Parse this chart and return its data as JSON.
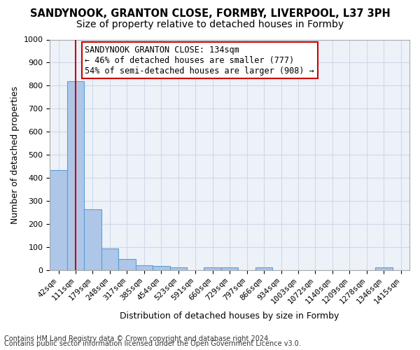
{
  "title1": "SANDYNOOK, GRANTON CLOSE, FORMBY, LIVERPOOL, L37 3PH",
  "title2": "Size of property relative to detached houses in Formby",
  "xlabel": "Distribution of detached houses by size in Formby",
  "ylabel": "Number of detached properties",
  "footer1": "Contains HM Land Registry data © Crown copyright and database right 2024.",
  "footer2": "Contains public sector information licensed under the Open Government Licence v3.0.",
  "bin_labels": [
    "42sqm",
    "111sqm",
    "179sqm",
    "248sqm",
    "317sqm",
    "385sqm",
    "454sqm",
    "523sqm",
    "591sqm",
    "660sqm",
    "729sqm",
    "797sqm",
    "866sqm",
    "934sqm",
    "1003sqm",
    "1072sqm",
    "1140sqm",
    "1209sqm",
    "1278sqm",
    "1346sqm",
    "1415sqm"
  ],
  "bar_values": [
    435,
    820,
    265,
    93,
    47,
    22,
    17,
    13,
    0,
    13,
    13,
    0,
    13,
    0,
    0,
    0,
    0,
    0,
    0,
    13,
    0
  ],
  "bar_color": "#aec6e8",
  "bar_edge_color": "#5a9fd4",
  "annotation_line1": "SANDYNOOK GRANTON CLOSE: 134sqm",
  "annotation_line2": "← 46% of detached houses are smaller (777)",
  "annotation_line3": "54% of semi-detached houses are larger (908) →",
  "annotation_box_color": "#ffffff",
  "annotation_box_edge": "#cc0000",
  "red_line_color": "#cc0000",
  "red_line_x": 1.0,
  "grid_color": "#d0d8e8",
  "ylim": [
    0,
    1000
  ],
  "yticks": [
    0,
    100,
    200,
    300,
    400,
    500,
    600,
    700,
    800,
    900,
    1000
  ],
  "bg_color": "#edf2f9",
  "title1_fontsize": 10.5,
  "title2_fontsize": 10,
  "axis_label_fontsize": 9,
  "tick_fontsize": 8,
  "annotation_fontsize": 8.5
}
